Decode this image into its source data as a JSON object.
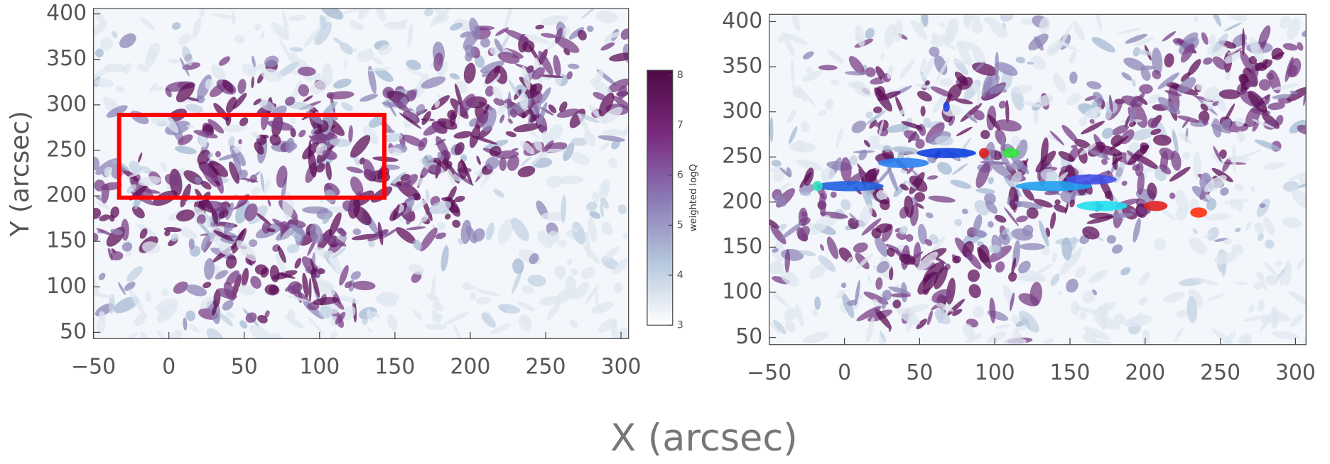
{
  "chart_data": [
    {
      "type": "heatmap",
      "ylabel": "Y (arcsec)",
      "xlim": [
        -50,
        305
      ],
      "ylim": [
        43,
        406
      ],
      "xticks": [
        {
          "value": -50,
          "label": "−50"
        },
        0,
        50,
        100,
        150,
        200,
        250,
        300
      ],
      "yticks": [
        50,
        100,
        150,
        200,
        250,
        300,
        350,
        400
      ],
      "colorbar": {
        "label": "weighted logQ",
        "lim": [
          3,
          8.1
        ],
        "ticks": [
          3,
          4,
          5,
          6,
          7,
          8
        ],
        "colors": [
          "#ffffff",
          "#b4c6dc",
          "#8a78b4",
          "#7a2a7e",
          "#4e0a45"
        ]
      },
      "box": {
        "x": [
          -33,
          143
        ],
        "y": [
          198,
          289
        ],
        "color": "#ff0000"
      }
    },
    {
      "type": "heatmap",
      "xlim": [
        -50,
        307
      ],
      "ylim": [
        42,
        408
      ],
      "xticks": [
        {
          "value": -50,
          "label": "−50"
        },
        0,
        50,
        100,
        150,
        200,
        250,
        300
      ],
      "yticks": [
        50,
        100,
        150,
        200,
        250,
        300,
        350,
        400
      ]
    }
  ],
  "xlabel": "X (arcsec)"
}
